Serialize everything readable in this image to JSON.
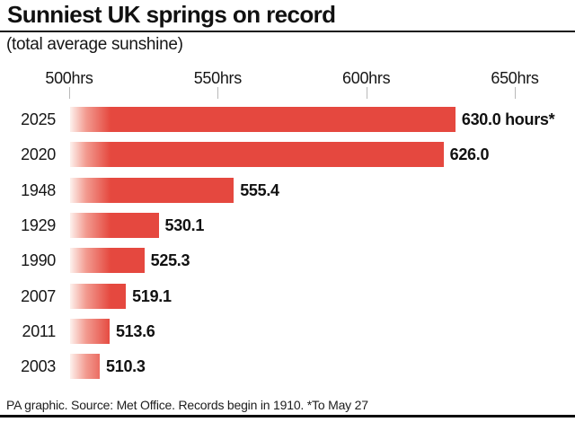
{
  "header": {
    "title": "Sunniest UK springs on record",
    "subtitle": "(total average sunshine)"
  },
  "chart_data": {
    "type": "bar",
    "orientation": "horizontal",
    "title": "Sunniest UK springs on record",
    "subtitle": "(total average sunshine)",
    "categories": [
      "2025",
      "2020",
      "1948",
      "1929",
      "1990",
      "2007",
      "2011",
      "2003"
    ],
    "values": [
      630.0,
      626.0,
      555.4,
      530.1,
      525.3,
      519.1,
      513.6,
      510.3
    ],
    "value_labels": [
      "630.0 hours*",
      "626.0",
      "555.4",
      "530.1",
      "525.3",
      "519.1",
      "513.6",
      "510.3"
    ],
    "unit": "hours",
    "x_ticks": [
      500,
      550,
      600,
      650
    ],
    "x_tick_labels": [
      "500hrs",
      "550hrs",
      "600hrs",
      "650hrs"
    ],
    "xlim": [
      500,
      650
    ],
    "grid": false,
    "legend": false,
    "bar_color": "#e5483f",
    "bar_fade_color": "#fdf1ed",
    "tick_color": "#b9b9b9"
  },
  "footer": {
    "text": "PA graphic. Source: Met Office. Records begin in 1910. *To May 27"
  }
}
